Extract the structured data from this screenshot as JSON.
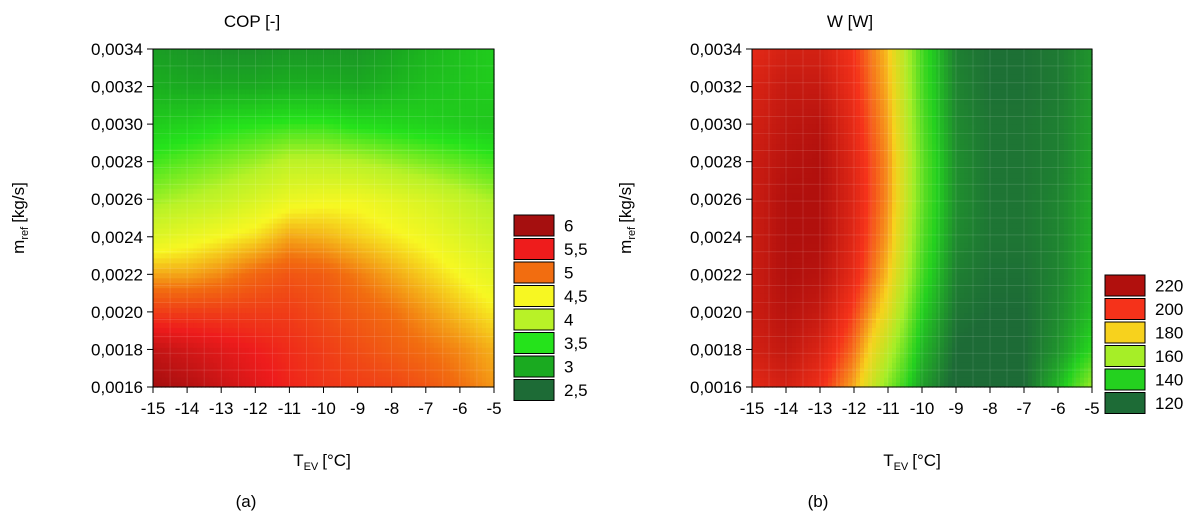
{
  "chart_data": [
    {
      "type": "heatmap",
      "title": "COP [-]",
      "subfigure_label": "(a)",
      "xlabel": {
        "main": "T",
        "sub": "EV",
        "unit": "[°C]"
      },
      "ylabel": {
        "main": "m",
        "sub": "ref",
        "unit": "[kg/s]"
      },
      "xlim": [
        -15,
        -5
      ],
      "ylim": [
        0.0016,
        0.0034
      ],
      "x_ticks": [
        "-15",
        "-14",
        "-13",
        "-12",
        "-11",
        "-10",
        "-9",
        "-8",
        "-7",
        "-6",
        "-5"
      ],
      "y_ticks": [
        "0,0016",
        "0,0018",
        "0,0020",
        "0,0022",
        "0,0024",
        "0,0026",
        "0,0028",
        "0,0030",
        "0,0032",
        "0,0034"
      ],
      "legend": {
        "placement": "right",
        "levels": [
          {
            "label": "6",
            "color": "#a50f0f"
          },
          {
            "label": "5,5",
            "color": "#ee1c1c"
          },
          {
            "label": "5",
            "color": "#f26d10"
          },
          {
            "label": "4,5",
            "color": "#f7f722"
          },
          {
            "label": "4",
            "color": "#b8f227"
          },
          {
            "label": "3,5",
            "color": "#25e31b"
          },
          {
            "label": "3",
            "color": "#1aaa20"
          },
          {
            "label": "2,5",
            "color": "#1d6b36"
          }
        ]
      },
      "grid": false,
      "x": [
        -15,
        -14,
        -13,
        -12,
        -11,
        -10,
        -9,
        -8,
        -7,
        -6,
        -5
      ],
      "y": [
        0.0016,
        0.0018,
        0.002,
        0.0022,
        0.0024,
        0.0026,
        0.0028,
        0.003,
        0.0032,
        0.0034
      ],
      "z": [
        [
          6.0,
          5.9,
          5.75,
          5.6,
          5.45,
          5.35,
          5.3,
          5.25,
          5.15,
          5.0,
          4.85
        ],
        [
          5.8,
          5.7,
          5.6,
          5.5,
          5.4,
          5.3,
          5.2,
          5.1,
          5.0,
          4.9,
          4.75
        ],
        [
          5.3,
          5.3,
          5.3,
          5.3,
          5.3,
          5.2,
          5.1,
          5.0,
          4.85,
          4.7,
          4.55
        ],
        [
          4.8,
          4.8,
          4.9,
          5.05,
          5.15,
          5.1,
          4.95,
          4.8,
          4.65,
          4.5,
          4.35
        ],
        [
          4.3,
          4.4,
          4.5,
          4.6,
          4.8,
          4.75,
          4.65,
          4.55,
          4.45,
          4.3,
          4.15
        ],
        [
          3.9,
          4.0,
          4.1,
          4.25,
          4.4,
          4.45,
          4.45,
          4.35,
          4.25,
          4.1,
          3.95
        ],
        [
          3.6,
          3.7,
          3.8,
          3.9,
          4.05,
          4.05,
          4.0,
          3.9,
          3.8,
          3.7,
          3.6
        ],
        [
          3.3,
          3.35,
          3.45,
          3.5,
          3.55,
          3.55,
          3.45,
          3.4,
          3.35,
          3.3,
          3.25
        ],
        [
          3.05,
          3.0,
          3.0,
          3.0,
          3.05,
          3.05,
          3.0,
          3.1,
          3.2,
          3.25,
          3.3
        ],
        [
          2.9,
          2.85,
          2.8,
          2.8,
          2.85,
          2.85,
          2.85,
          2.95,
          3.1,
          3.2,
          3.3
        ]
      ]
    },
    {
      "type": "heatmap",
      "title": "W [W]",
      "subfigure_label": "(b)",
      "xlabel": {
        "main": "T",
        "sub": "EV",
        "unit": "[°C]"
      },
      "ylabel": {
        "main": "m",
        "sub": "ref",
        "unit": "[kg/s]"
      },
      "xlim": [
        -15,
        -5
      ],
      "ylim": [
        0.0016,
        0.0034
      ],
      "x_ticks": [
        "-15",
        "-14",
        "-13",
        "-12",
        "-11",
        "-10",
        "-9",
        "-8",
        "-7",
        "-6",
        "-5"
      ],
      "y_ticks": [
        "0,0016",
        "0,0018",
        "0,0020",
        "0,0022",
        "0,0024",
        "0,0026",
        "0,0028",
        "0,0030",
        "0,0032",
        "0,0034"
      ],
      "legend": {
        "placement": "right",
        "levels": [
          {
            "label": "220",
            "color": "#b1100d"
          },
          {
            "label": "200",
            "color": "#f5321a"
          },
          {
            "label": "180",
            "color": "#f7d21d"
          },
          {
            "label": "160",
            "color": "#a6ee27"
          },
          {
            "label": "140",
            "color": "#24d11f"
          },
          {
            "label": "120",
            "color": "#1d6b36"
          }
        ]
      },
      "grid": false,
      "x": [
        -15,
        -14,
        -13,
        -12,
        -11,
        -10,
        -9,
        -8,
        -7,
        -6,
        -5
      ],
      "y": [
        0.0016,
        0.0018,
        0.002,
        0.0022,
        0.0024,
        0.0026,
        0.0028,
        0.003,
        0.0032,
        0.0034
      ],
      "z": [
        [
          205,
          210,
          202,
          185,
          155,
          130,
          118,
          116,
          120,
          135,
          158
        ],
        [
          210,
          215,
          208,
          192,
          165,
          135,
          120,
          118,
          120,
          128,
          142
        ],
        [
          212,
          218,
          214,
          198,
          175,
          140,
          122,
          120,
          120,
          126,
          136
        ],
        [
          212,
          220,
          218,
          204,
          182,
          145,
          124,
          121,
          121,
          125,
          134
        ],
        [
          212,
          220,
          220,
          206,
          186,
          148,
          126,
          122,
          122,
          125,
          133
        ],
        [
          212,
          220,
          220,
          207,
          188,
          150,
          127,
          122,
          122,
          125,
          132
        ],
        [
          212,
          218,
          220,
          206,
          188,
          150,
          127,
          122,
          122,
          124,
          131
        ],
        [
          210,
          216,
          218,
          204,
          186,
          148,
          126,
          122,
          122,
          124,
          130
        ],
        [
          208,
          214,
          214,
          202,
          184,
          146,
          125,
          121,
          121,
          123,
          129
        ],
        [
          205,
          210,
          210,
          200,
          182,
          145,
          124,
          121,
          121,
          123,
          128
        ]
      ]
    }
  ]
}
